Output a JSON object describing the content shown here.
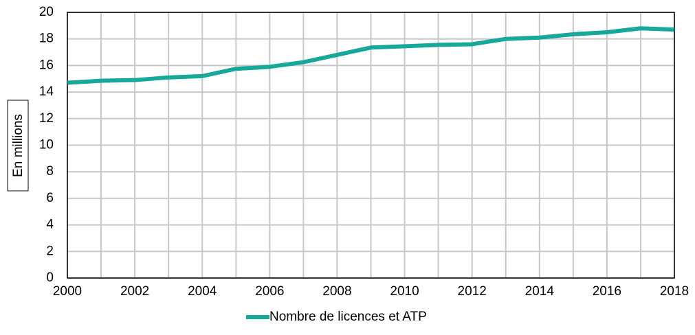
{
  "chart_data": {
    "type": "line",
    "y_label": "En millions",
    "x": [
      2000,
      2001,
      2002,
      2003,
      2004,
      2005,
      2006,
      2007,
      2008,
      2009,
      2010,
      2011,
      2012,
      2013,
      2014,
      2015,
      2016,
      2017,
      2018
    ],
    "series": [
      {
        "name": "Nombre de licences et ATP",
        "color": "#17a89a",
        "values": [
          14.7,
          14.85,
          14.9,
          15.1,
          15.2,
          15.75,
          15.9,
          16.25,
          16.8,
          17.35,
          17.45,
          17.55,
          17.6,
          18.0,
          18.1,
          18.35,
          18.5,
          18.8,
          18.7
        ]
      }
    ],
    "xlim": [
      2000,
      2018
    ],
    "xticks": [
      2000,
      2002,
      2004,
      2006,
      2008,
      2010,
      2012,
      2014,
      2016,
      2018
    ],
    "ylim": [
      0,
      20
    ],
    "yticks": [
      0,
      2,
      4,
      6,
      8,
      10,
      12,
      14,
      16,
      18,
      20
    ],
    "grid": true,
    "legend": "bottom"
  }
}
